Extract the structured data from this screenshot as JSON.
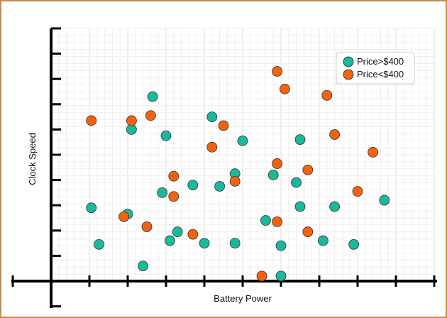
{
  "chart_data": {
    "type": "scatter",
    "title": "",
    "xlabel": "Battery Power",
    "ylabel": "Clock Speed",
    "xlim": [
      0,
      10
    ],
    "ylim": [
      0,
      10
    ],
    "grid": true,
    "legend_position": "top-right",
    "series": [
      {
        "name": "Price>$400",
        "color": "#1ab89c",
        "points": [
          [
            2.65,
            7.3
          ],
          [
            2.1,
            6.0
          ],
          [
            3.0,
            5.75
          ],
          [
            4.2,
            6.5
          ],
          [
            5.0,
            5.55
          ],
          [
            6.5,
            5.6
          ],
          [
            5.8,
            4.2
          ],
          [
            6.4,
            3.9
          ],
          [
            3.7,
            3.8
          ],
          [
            2.9,
            3.5
          ],
          [
            7.4,
            2.95
          ],
          [
            4.8,
            4.25
          ],
          [
            1.05,
            2.9
          ],
          [
            2.0,
            2.65
          ],
          [
            7.1,
            1.6
          ],
          [
            5.6,
            2.4
          ],
          [
            4.4,
            3.75
          ],
          [
            6.5,
            2.95
          ],
          [
            3.3,
            1.95
          ],
          [
            8.7,
            3.2
          ],
          [
            1.25,
            1.45
          ],
          [
            4.8,
            1.5
          ],
          [
            7.9,
            1.45
          ],
          [
            6.0,
            1.4
          ],
          [
            3.1,
            1.6
          ],
          [
            4.0,
            1.5
          ],
          [
            2.4,
            0.6
          ],
          [
            6.0,
            0.2
          ]
        ]
      },
      {
        "name": "Price<$400",
        "color": "#f2620f",
        "points": [
          [
            5.9,
            8.3
          ],
          [
            6.1,
            7.6
          ],
          [
            1.05,
            6.35
          ],
          [
            2.1,
            6.35
          ],
          [
            2.6,
            6.55
          ],
          [
            4.5,
            6.15
          ],
          [
            7.2,
            7.35
          ],
          [
            7.4,
            5.8
          ],
          [
            4.2,
            5.3
          ],
          [
            8.4,
            5.1
          ],
          [
            5.9,
            4.65
          ],
          [
            6.7,
            4.4
          ],
          [
            3.2,
            4.15
          ],
          [
            4.8,
            3.95
          ],
          [
            8.0,
            3.55
          ],
          [
            3.2,
            3.35
          ],
          [
            1.9,
            2.55
          ],
          [
            2.5,
            2.15
          ],
          [
            3.7,
            1.85
          ],
          [
            5.9,
            2.35
          ],
          [
            6.7,
            1.95
          ],
          [
            5.5,
            0.2
          ]
        ]
      }
    ]
  }
}
